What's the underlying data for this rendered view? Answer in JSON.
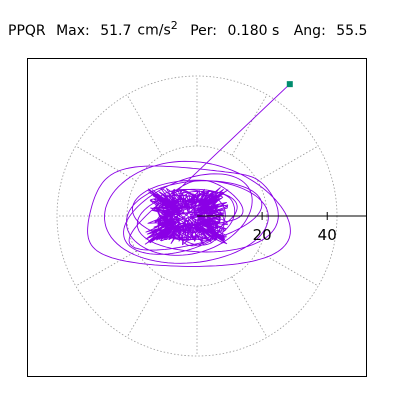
{
  "header": {
    "station": "PPQR",
    "max_label": "Max:",
    "max_value": "51.7",
    "max_unit": "cm/s",
    "max_unit_exp": "2",
    "per_label": "Per:",
    "per_value": "0.180 s",
    "ang_label": "Ang:",
    "ang_value": "55.5"
  },
  "chart_data": {
    "type": "polar_particle_motion",
    "radial_ticks": [
      "20",
      "40"
    ],
    "radial_tick_values": [
      20,
      40
    ],
    "rlim": [
      0,
      43
    ],
    "grid": "dotted polar rings and spokes every 30 degrees",
    "trace_color": "#8a00e6",
    "marker_color": "#008c6e",
    "endpoint": {
      "x": 28.5,
      "y": 40.5
    }
  }
}
